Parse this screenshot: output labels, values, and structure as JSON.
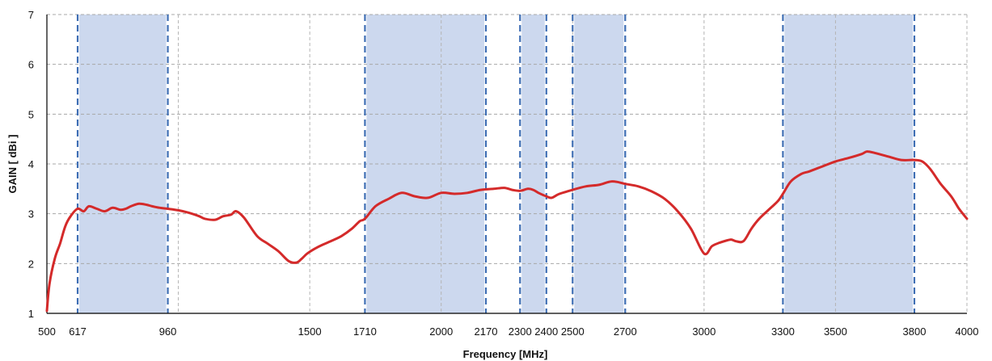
{
  "chart_data": {
    "type": "line",
    "title": "",
    "xlabel": "Frequency [MHz]",
    "ylabel": "GAIN [ dBi ]",
    "xlim": [
      500,
      4000
    ],
    "ylim": [
      1,
      7
    ],
    "grid": true,
    "x_grid": [
      500,
      1000,
      1500,
      2000,
      2500,
      3000,
      3500,
      4000
    ],
    "y_ticks": [
      1,
      2,
      3,
      4,
      5,
      6,
      7
    ],
    "x_tick_labels": [
      {
        "value": 500,
        "label": "500"
      },
      {
        "value": 617,
        "label": "617"
      },
      {
        "value": 960,
        "label": "960"
      },
      {
        "value": 1500,
        "label": "1500"
      },
      {
        "value": 1710,
        "label": "1710"
      },
      {
        "value": 2000,
        "label": "2000"
      },
      {
        "value": 2170,
        "label": "2170"
      },
      {
        "value": 2300,
        "label": "2300"
      },
      {
        "value": 2400,
        "label": "2400"
      },
      {
        "value": 2500,
        "label": "2500"
      },
      {
        "value": 2700,
        "label": "2700"
      },
      {
        "value": 3000,
        "label": "3000"
      },
      {
        "value": 3300,
        "label": "3300"
      },
      {
        "value": 3500,
        "label": "3500"
      },
      {
        "value": 3800,
        "label": "3800"
      },
      {
        "value": 4000,
        "label": "4000"
      }
    ],
    "bands": [
      {
        "from": 617,
        "to": 960
      },
      {
        "from": 1710,
        "to": 2170
      },
      {
        "from": 2300,
        "to": 2400
      },
      {
        "from": 2500,
        "to": 2700
      },
      {
        "from": 3300,
        "to": 3800
      }
    ],
    "series": [
      {
        "color": "#d42a2a",
        "x": [
          500,
          510,
          530,
          550,
          570,
          590,
          617,
          640,
          660,
          690,
          720,
          750,
          780,
          800,
          820,
          850,
          880,
          900,
          930,
          960,
          1000,
          1040,
          1080,
          1100,
          1140,
          1170,
          1200,
          1220,
          1250,
          1300,
          1340,
          1380,
          1420,
          1450,
          1470,
          1490,
          1520,
          1550,
          1580,
          1620,
          1660,
          1690,
          1710,
          1750,
          1800,
          1850,
          1900,
          1950,
          2000,
          2050,
          2100,
          2150,
          2200,
          2240,
          2270,
          2300,
          2330,
          2350,
          2370,
          2400,
          2420,
          2450,
          2500,
          2550,
          2600,
          2650,
          2700,
          2750,
          2800,
          2850,
          2900,
          2950,
          3000,
          3030,
          3060,
          3100,
          3120,
          3150,
          3180,
          3210,
          3250,
          3280,
          3300,
          3330,
          3370,
          3400,
          3450,
          3500,
          3550,
          3600,
          3620,
          3650,
          3700,
          3750,
          3800,
          3830,
          3860,
          3900,
          3940,
          3970,
          4000
        ],
        "y": [
          1.05,
          1.6,
          2.1,
          2.4,
          2.75,
          2.95,
          3.1,
          3.05,
          3.15,
          3.1,
          3.05,
          3.12,
          3.08,
          3.1,
          3.15,
          3.2,
          3.18,
          3.15,
          3.12,
          3.1,
          3.07,
          3.02,
          2.95,
          2.9,
          2.88,
          2.95,
          2.98,
          3.05,
          2.92,
          2.55,
          2.4,
          2.25,
          2.05,
          2.02,
          2.1,
          2.2,
          2.3,
          2.38,
          2.45,
          2.55,
          2.7,
          2.85,
          2.9,
          3.15,
          3.3,
          3.42,
          3.35,
          3.32,
          3.42,
          3.4,
          3.42,
          3.48,
          3.5,
          3.52,
          3.48,
          3.46,
          3.5,
          3.48,
          3.42,
          3.35,
          3.32,
          3.4,
          3.48,
          3.55,
          3.58,
          3.65,
          3.6,
          3.55,
          3.45,
          3.3,
          3.05,
          2.7,
          2.2,
          2.35,
          2.42,
          2.48,
          2.45,
          2.45,
          2.7,
          2.9,
          3.1,
          3.25,
          3.4,
          3.65,
          3.8,
          3.85,
          3.95,
          4.05,
          4.12,
          4.2,
          4.25,
          4.22,
          4.15,
          4.08,
          4.08,
          4.05,
          3.9,
          3.6,
          3.35,
          3.1,
          2.9
        ]
      }
    ]
  }
}
